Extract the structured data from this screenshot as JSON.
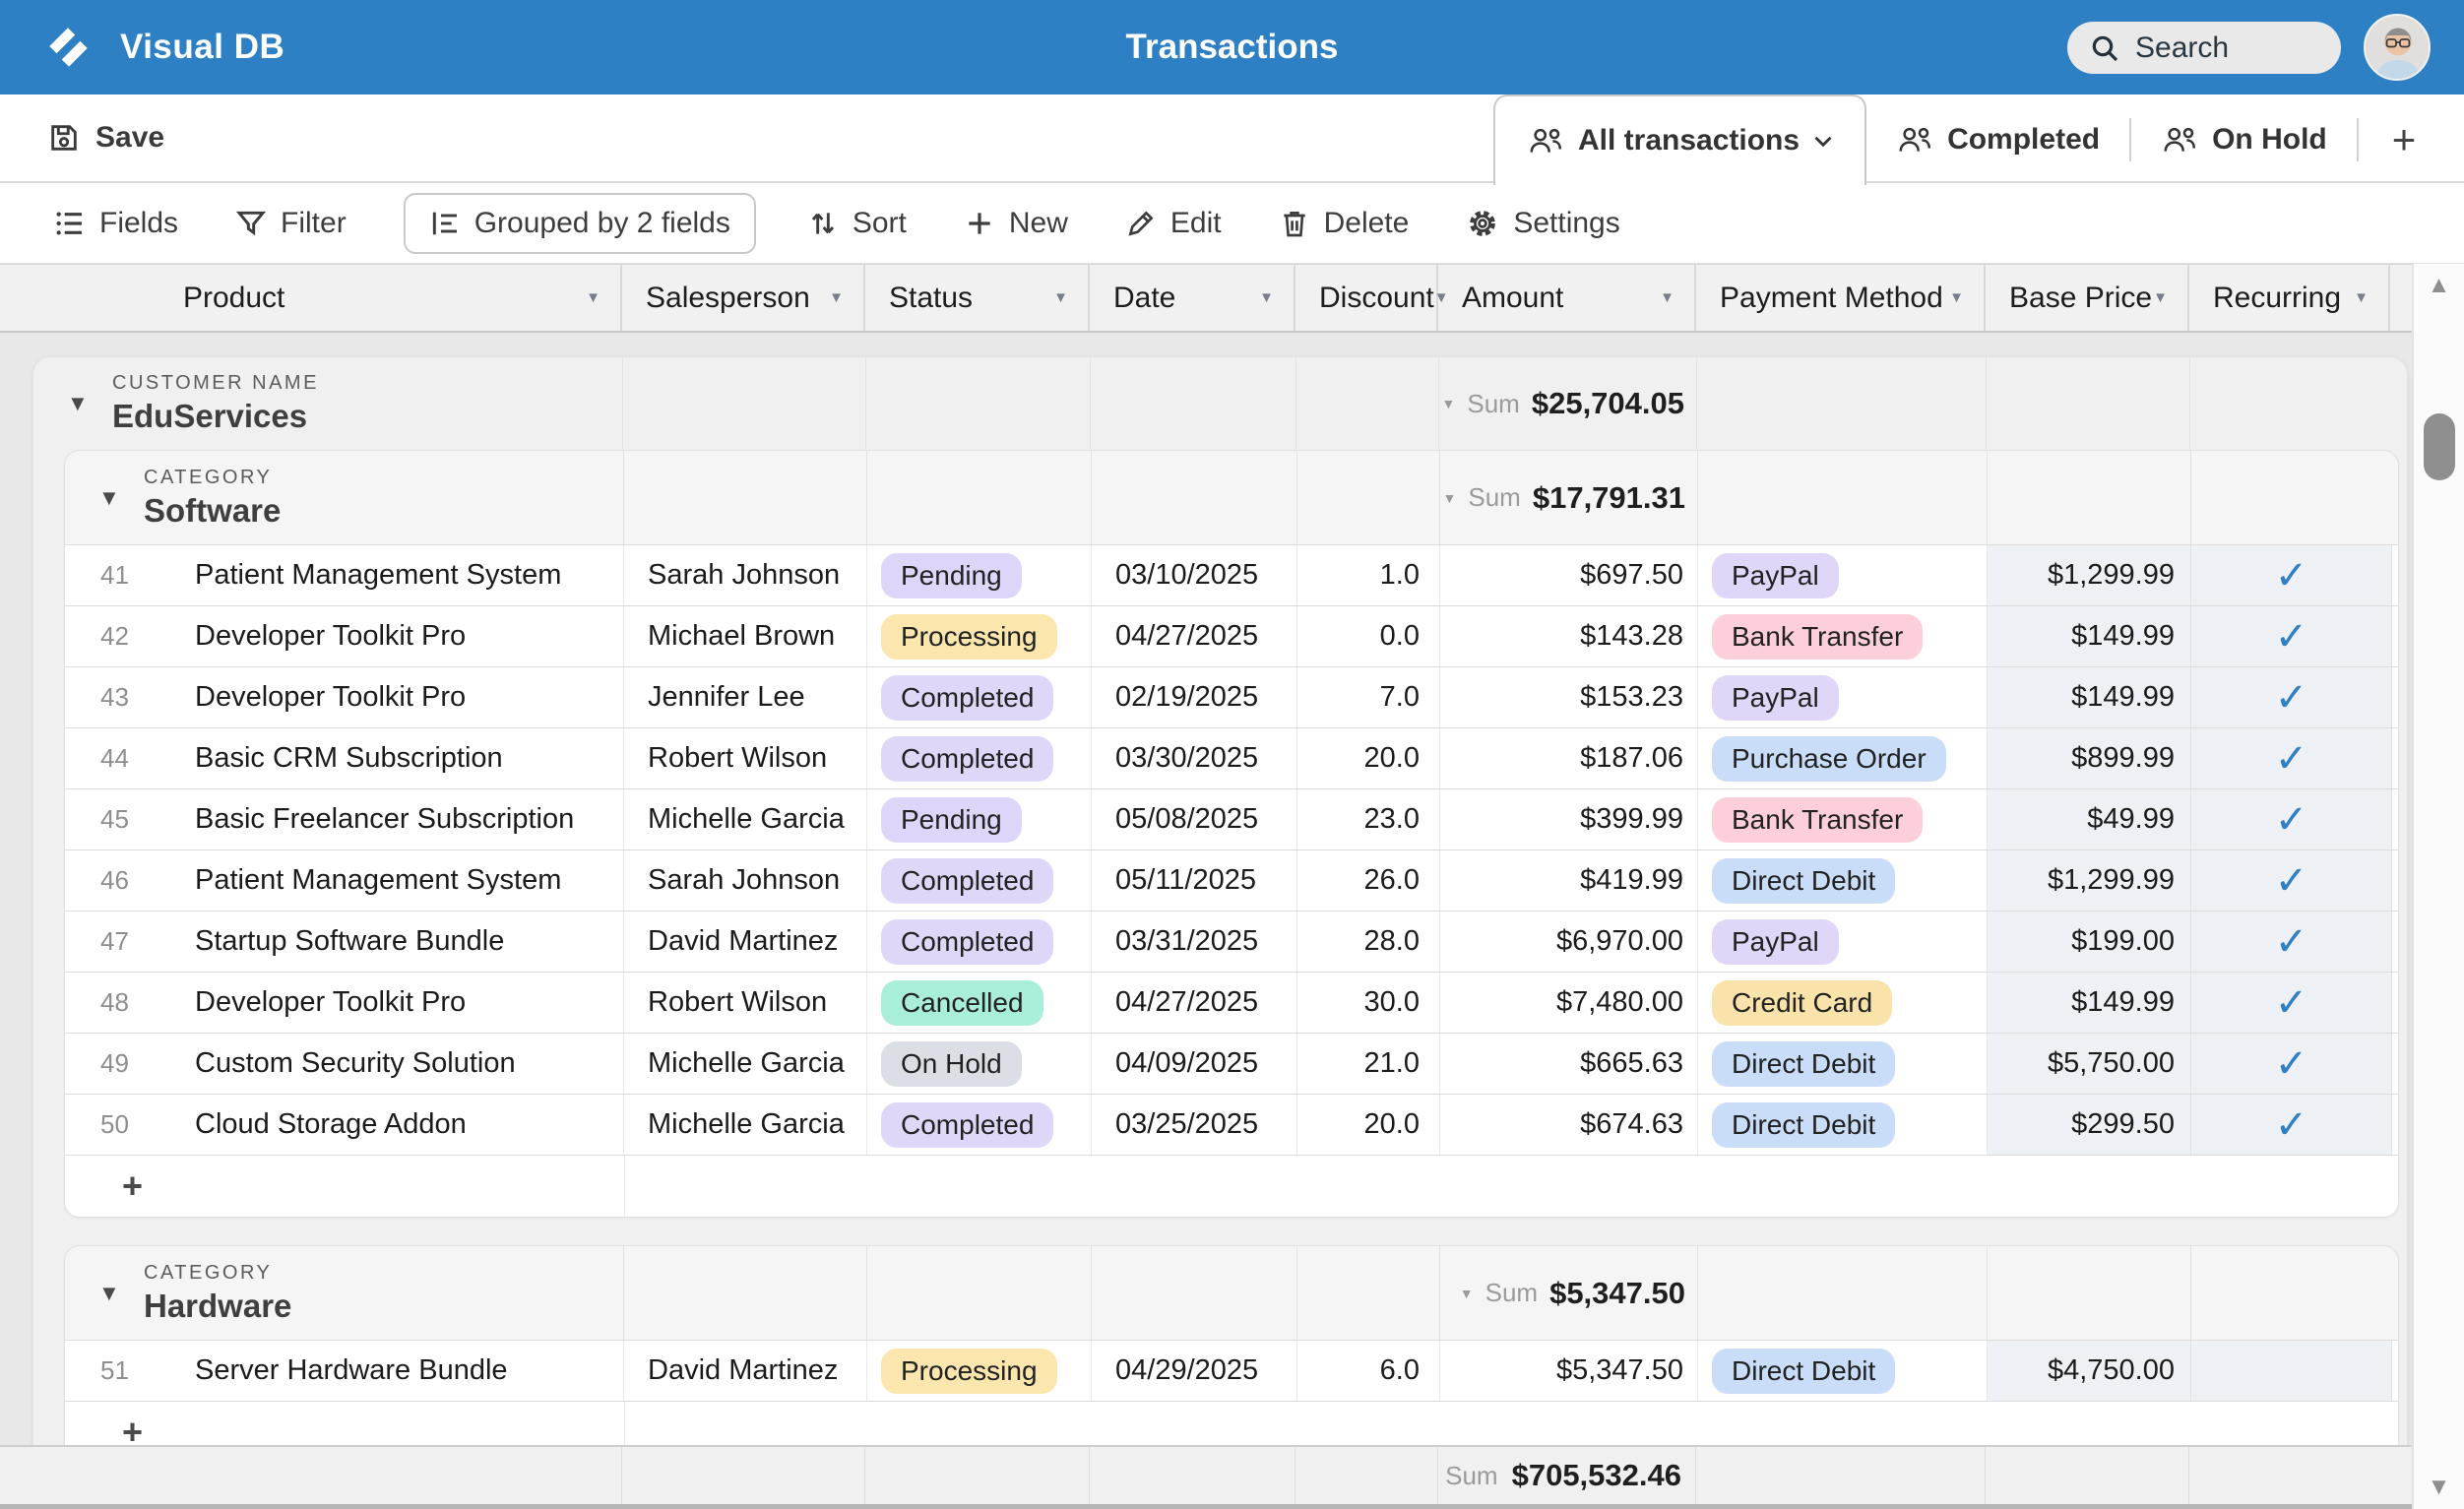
{
  "header": {
    "app_title": "Visual DB",
    "page_title": "Transactions",
    "search_placeholder": "Search"
  },
  "tab_bar": {
    "save": "Save",
    "tabs": [
      {
        "label": "All transactions"
      },
      {
        "label": "Completed"
      },
      {
        "label": "On Hold"
      }
    ],
    "add": "+"
  },
  "toolbar": {
    "fields": "Fields",
    "filter": "Filter",
    "grouped": "Grouped by 2 fields",
    "sort": "Sort",
    "new": "New",
    "edit": "Edit",
    "del": "Delete",
    "settings": "Settings"
  },
  "table": {
    "columns": [
      "Product",
      "Salesperson",
      "Status",
      "Date",
      "Discount",
      "Amount",
      "Payment Method",
      "Base Price",
      "Recurring"
    ]
  },
  "group": {
    "label": "CUSTOMER NAME",
    "name": "EduServices",
    "sum_label": "Sum",
    "sum_value": "$25,704.05",
    "categories": [
      {
        "label": "CATEGORY",
        "name": "Software",
        "sum_label": "Sum",
        "sum_value": "$17,791.31",
        "add": "+",
        "rows": [
          {
            "num": "41",
            "product": "Patient Management System",
            "salesperson": "Sarah Johnson",
            "status": "Pending",
            "date": "03/10/2025",
            "discount": "1.0",
            "amount": "$697.50",
            "payment": "PayPal",
            "base_price": "$1,299.99",
            "recurring": "✓"
          },
          {
            "num": "42",
            "product": "Developer Toolkit Pro",
            "salesperson": "Michael Brown",
            "status": "Processing",
            "date": "04/27/2025",
            "discount": "0.0",
            "amount": "$143.28",
            "payment": "Bank Transfer",
            "base_price": "$149.99",
            "recurring": "✓"
          },
          {
            "num": "43",
            "product": "Developer Toolkit Pro",
            "salesperson": "Jennifer Lee",
            "status": "Completed",
            "date": "02/19/2025",
            "discount": "7.0",
            "amount": "$153.23",
            "payment": "PayPal",
            "base_price": "$149.99",
            "recurring": "✓"
          },
          {
            "num": "44",
            "product": "Basic CRM Subscription",
            "salesperson": "Robert Wilson",
            "status": "Completed",
            "date": "03/30/2025",
            "discount": "20.0",
            "amount": "$187.06",
            "payment": "Purchase Order",
            "base_price": "$899.99",
            "recurring": "✓"
          },
          {
            "num": "45",
            "product": "Basic Freelancer Subscription",
            "salesperson": "Michelle Garcia",
            "status": "Pending",
            "date": "05/08/2025",
            "discount": "23.0",
            "amount": "$399.99",
            "payment": "Bank Transfer",
            "base_price": "$49.99",
            "recurring": "✓"
          },
          {
            "num": "46",
            "product": "Patient Management System",
            "salesperson": "Sarah Johnson",
            "status": "Completed",
            "date": "05/11/2025",
            "discount": "26.0",
            "amount": "$419.99",
            "payment": "Direct Debit",
            "base_price": "$1,299.99",
            "recurring": "✓"
          },
          {
            "num": "47",
            "product": "Startup Software Bundle",
            "salesperson": "David Martinez",
            "status": "Completed",
            "date": "03/31/2025",
            "discount": "28.0",
            "amount": "$6,970.00",
            "payment": "PayPal",
            "base_price": "$199.00",
            "recurring": "✓"
          },
          {
            "num": "48",
            "product": "Developer Toolkit Pro",
            "salesperson": "Robert Wilson",
            "status": "Cancelled",
            "date": "04/27/2025",
            "discount": "30.0",
            "amount": "$7,480.00",
            "payment": "Credit Card",
            "base_price": "$149.99",
            "recurring": "✓"
          },
          {
            "num": "49",
            "product": "Custom Security Solution",
            "salesperson": "Michelle Garcia",
            "status": "On Hold",
            "date": "04/09/2025",
            "discount": "21.0",
            "amount": "$665.63",
            "payment": "Direct Debit",
            "base_price": "$5,750.00",
            "recurring": "✓"
          },
          {
            "num": "50",
            "product": "Cloud Storage Addon",
            "salesperson": "Michelle Garcia",
            "status": "Completed",
            "date": "03/25/2025",
            "discount": "20.0",
            "amount": "$674.63",
            "payment": "Direct Debit",
            "base_price": "$299.50",
            "recurring": "✓"
          }
        ]
      },
      {
        "label": "CATEGORY",
        "name": "Hardware",
        "sum_label": "Sum",
        "sum_value": "$5,347.50",
        "add": "+",
        "rows": [
          {
            "num": "51",
            "product": "Server Hardware Bundle",
            "salesperson": "David Martinez",
            "status": "Processing",
            "date": "04/29/2025",
            "discount": "6.0",
            "amount": "$5,347.50",
            "payment": "Direct Debit",
            "base_price": "$4,750.00",
            "recurring": ""
          }
        ]
      }
    ]
  },
  "footer": {
    "sum_label": "Sum",
    "sum_value": "$705,532.46"
  },
  "colors": {
    "header_bg": "#2e80c5",
    "accent_blue": "#2e7fc4",
    "badges": {
      "Pending": "#ddd6f8",
      "Processing": "#fbe7ad",
      "Completed": "#ded7f8",
      "Cancelled": "#a9eedb",
      "On Hold": "#dbdee4",
      "PayPal": "#e0d6f8",
      "Bank Transfer": "#fccfdb",
      "Purchase Order": "#c9dcf8",
      "Direct Debit": "#c9dcf8",
      "Credit Card": "#fae3ab"
    }
  }
}
